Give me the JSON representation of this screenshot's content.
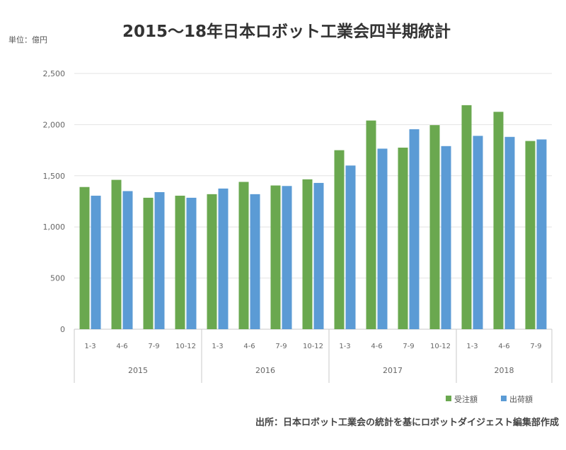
{
  "chart_data": {
    "type": "bar",
    "title": "2015〜18年日本ロボット工業会四半期統計",
    "unit_label": "単位：億円",
    "source_note": "出所：日本ロボット工業会の統計を基にロボットダイジェスト編集部作成",
    "ylim": [
      0,
      2500
    ],
    "yticks": [
      0,
      500,
      1000,
      1500,
      2000,
      2500
    ],
    "ytick_labels": [
      "0",
      "500",
      "1,000",
      "1,500",
      "2,000",
      "2,500"
    ],
    "grid": true,
    "legend_position": "bottom-right",
    "categories": [
      "1-3",
      "4-6",
      "7-9",
      "10-12",
      "1-3",
      "4-6",
      "7-9",
      "10-12",
      "1-3",
      "4-6",
      "7-9",
      "10-12",
      "1-3",
      "4-6",
      "7-9"
    ],
    "groups": [
      {
        "label": "2015",
        "count": 4
      },
      {
        "label": "2016",
        "count": 4
      },
      {
        "label": "2017",
        "count": 4
      },
      {
        "label": "2018",
        "count": 3
      }
    ],
    "series": [
      {
        "name": "受注額",
        "color": "#6aa84f",
        "values": [
          1390,
          1460,
          1285,
          1305,
          1320,
          1440,
          1405,
          1465,
          1750,
          2040,
          1775,
          1995,
          2190,
          2125,
          1840
        ]
      },
      {
        "name": "出荷額",
        "color": "#5b9bd5",
        "values": [
          1305,
          1350,
          1340,
          1285,
          1375,
          1320,
          1400,
          1430,
          1600,
          1765,
          1955,
          1790,
          1890,
          1880,
          1855
        ]
      }
    ]
  }
}
